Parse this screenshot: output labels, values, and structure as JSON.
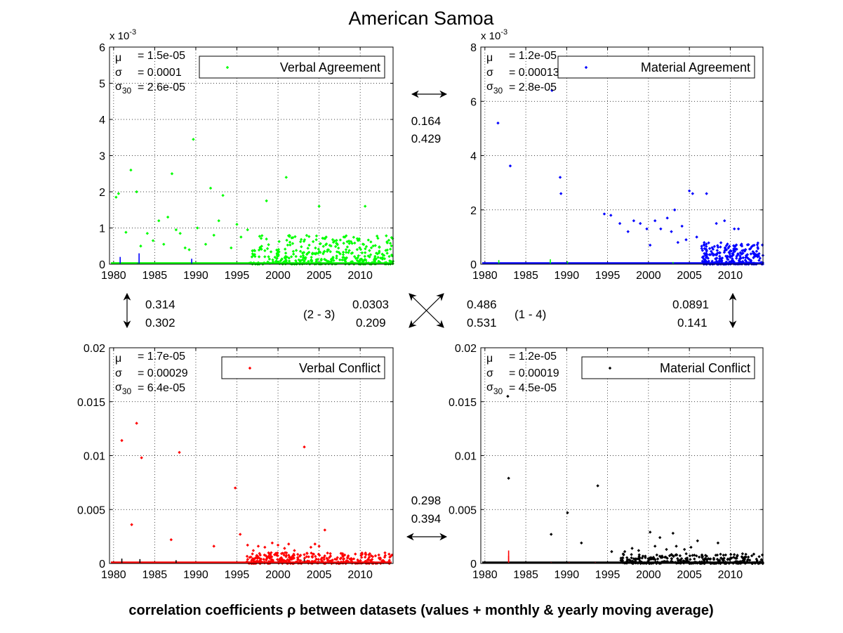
{
  "figure": {
    "title": "American Samoa",
    "footer": "correlation coefficients ρ between datasets (values + monthly & yearly moving average)"
  },
  "colors": {
    "verbal_agreement": "#00ff00",
    "material_agreement": "#0000ff",
    "verbal_conflict": "#ff0000",
    "material_conflict": "#000000",
    "grid": "#000000",
    "text": "#000000"
  },
  "correlations": {
    "pair_1_2": [
      "0.164",
      "0.429"
    ],
    "pair_1_3": [
      "0.314",
      "0.302"
    ],
    "pair_2_3_label": "(2 - 3)",
    "pair_2_3": [
      "0.0303",
      "0.209"
    ],
    "pair_1_4_label": "(1 - 4)",
    "pair_1_4": [
      "0.486",
      "0.531"
    ],
    "pair_2_4": [
      "0.0891",
      "0.141"
    ],
    "pair_3_4": [
      "0.298",
      "0.394"
    ]
  },
  "chart_data": [
    {
      "type": "scatter",
      "title": "",
      "legend": "Verbal Agreement",
      "legend_position": "top-right",
      "color": "#00ff00",
      "exponent_label": "x 10",
      "exponent_power": "-3",
      "xlim": [
        1979.5,
        2014
      ],
      "ylim": [
        0,
        0.006
      ],
      "grid": true,
      "xticks": [
        "1980",
        "1985",
        "1990",
        "1995",
        "2000",
        "2005",
        "2010"
      ],
      "yticks": [
        "0",
        "1",
        "2",
        "3",
        "4",
        "5",
        "6"
      ],
      "stats": {
        "mu": "= 1.5e-05",
        "sigma": "= 0.0001",
        "sigma30": "= 2.6e-05"
      },
      "points": [
        [
          1980.3,
          0.00185
        ],
        [
          1980.6,
          0.00195
        ],
        [
          1981.5,
          0.00088
        ],
        [
          1982.1,
          0.0026
        ],
        [
          1982.8,
          0.002
        ],
        [
          1983.3,
          0.0005
        ],
        [
          1984.1,
          0.00085
        ],
        [
          1984.8,
          0.00065
        ],
        [
          1985.5,
          0.0012
        ],
        [
          1986.1,
          0.00055
        ],
        [
          1986.6,
          0.0013
        ],
        [
          1987.1,
          0.0025
        ],
        [
          1987.6,
          0.00095
        ],
        [
          1988.1,
          0.00085
        ],
        [
          1988.7,
          0.00045
        ],
        [
          1989.2,
          0.0004
        ],
        [
          1989.7,
          0.00345
        ],
        [
          1990.2,
          0.001
        ],
        [
          1991.2,
          0.00055
        ],
        [
          1991.8,
          0.0021
        ],
        [
          1992.2,
          0.0008
        ],
        [
          1992.8,
          0.0012
        ],
        [
          1993.3,
          0.0019
        ],
        [
          1994.3,
          0.00045
        ],
        [
          1995.0,
          0.0011
        ],
        [
          1995.5,
          0.00075
        ],
        [
          1996.3,
          0.00095
        ],
        [
          1998.6,
          0.00175
        ],
        [
          2001.0,
          0.0024
        ],
        [
          2005.0,
          0.0016
        ],
        [
          2010.6,
          0.0016
        ]
      ],
      "dense_cluster": {
        "from": 1996.5,
        "to": 2014,
        "max": 0.0008,
        "count": 380,
        "seed": 11
      },
      "secondary": [
        [
          1980.8,
          0.0002,
          "#0000ff"
        ],
        [
          1983.1,
          0.0003,
          "#0000ff"
        ],
        [
          1989.5,
          0.00015,
          "#0000ff"
        ],
        [
          1982.9,
          3e-05,
          "#0000ff"
        ]
      ]
    },
    {
      "type": "scatter",
      "title": "",
      "legend": "Material Agreement",
      "legend_position": "top-right",
      "color": "#0000ff",
      "exponent_label": "x 10",
      "exponent_power": "-3",
      "xlim": [
        1979.5,
        2014
      ],
      "ylim": [
        0,
        0.008
      ],
      "grid": true,
      "xticks": [
        "1980",
        "1985",
        "1990",
        "1995",
        "2000",
        "2005",
        "2010"
      ],
      "yticks": [
        "0",
        "2",
        "4",
        "6",
        "8"
      ],
      "stats": {
        "mu": "= 1.2e-05",
        "sigma": "= 0.00013",
        "sigma30": "= 2.8e-05"
      },
      "points": [
        [
          1981.6,
          0.0052
        ],
        [
          1983.1,
          0.00362
        ],
        [
          1988.2,
          0.0064
        ],
        [
          1989.2,
          0.0032
        ],
        [
          1989.3,
          0.0026
        ],
        [
          1994.6,
          0.00185
        ],
        [
          1995.4,
          0.0018
        ],
        [
          1996.5,
          0.0015
        ],
        [
          1997.5,
          0.0012
        ],
        [
          1998.2,
          0.0016
        ],
        [
          1999.0,
          0.0015
        ],
        [
          1999.8,
          0.0013
        ],
        [
          2000.2,
          0.0007
        ],
        [
          2000.8,
          0.0016
        ],
        [
          2001.5,
          0.0013
        ],
        [
          2002.3,
          0.0017
        ],
        [
          2002.8,
          0.0012
        ],
        [
          2003.2,
          0.002
        ],
        [
          2003.6,
          0.0008
        ],
        [
          2004.1,
          0.0014
        ],
        [
          2004.6,
          0.0009
        ],
        [
          2005.0,
          0.0027
        ],
        [
          2005.4,
          0.0026
        ],
        [
          2005.9,
          0.001
        ],
        [
          2007.1,
          0.0026
        ],
        [
          2008.3,
          0.0015
        ],
        [
          2009.3,
          0.0016
        ],
        [
          2010.5,
          0.0013
        ],
        [
          2011.0,
          0.0013
        ]
      ],
      "dense_cluster": {
        "from": 2006.5,
        "to": 2014,
        "max": 0.0008,
        "count": 260,
        "seed": 23
      },
      "secondary": [
        [
          1981.7,
          0.00015,
          "#00ff00"
        ],
        [
          1988.0,
          0.00018,
          "#00ff00"
        ],
        [
          1990.1,
          0.0001,
          "#00ff00"
        ],
        [
          2003.0,
          8e-05,
          "#00ff00"
        ]
      ]
    },
    {
      "type": "scatter",
      "title": "",
      "legend": "Verbal Conflict",
      "legend_position": "top-right",
      "color": "#ff0000",
      "exponent_label": "",
      "exponent_power": "",
      "xlim": [
        1979.5,
        2014
      ],
      "ylim": [
        0,
        0.02
      ],
      "grid": true,
      "xticks": [
        "1980",
        "1985",
        "1990",
        "1995",
        "2000",
        "2005",
        "2010"
      ],
      "yticks": [
        "0",
        "0.005",
        "0.01",
        "0.015",
        "0.02"
      ],
      "stats": {
        "mu": "= 1.7e-05",
        "sigma": "= 0.00029",
        "sigma30": "= 6.4e-05"
      },
      "points": [
        [
          1981.0,
          0.0114
        ],
        [
          1982.2,
          0.0036
        ],
        [
          1982.8,
          0.013
        ],
        [
          1983.4,
          0.0098
        ],
        [
          1987.0,
          0.0022
        ],
        [
          1988.0,
          0.0103
        ],
        [
          1992.2,
          0.0016
        ],
        [
          1994.8,
          0.007
        ],
        [
          1995.4,
          0.0027
        ],
        [
          1996.3,
          0.0017
        ],
        [
          1997.0,
          0.0012
        ],
        [
          1997.6,
          0.0016
        ],
        [
          1998.4,
          0.0015
        ],
        [
          1999.3,
          0.0019
        ],
        [
          2000.0,
          0.0017
        ],
        [
          2000.8,
          0.0014
        ],
        [
          2001.3,
          0.0018
        ],
        [
          2002.0,
          0.0012
        ],
        [
          2003.2,
          0.0108
        ],
        [
          2004.0,
          0.0015
        ],
        [
          2004.5,
          0.0018
        ],
        [
          2005.0,
          0.0016
        ],
        [
          2005.7,
          0.0031
        ]
      ],
      "dense_cluster": {
        "from": 1996.0,
        "to": 2014,
        "max": 0.001,
        "count": 320,
        "seed": 37
      },
      "secondary": [
        [
          1981.0,
          0.00045,
          "#000000"
        ],
        [
          1983.2,
          0.0004,
          "#000000"
        ],
        [
          1987.6,
          0.0003,
          "#000000"
        ],
        [
          2003.2,
          0.0005,
          "#000000"
        ]
      ]
    },
    {
      "type": "scatter",
      "title": "",
      "legend": "Material Conflict",
      "legend_position": "top-right",
      "color": "#000000",
      "exponent_label": "",
      "exponent_power": "",
      "xlim": [
        1979.5,
        2014
      ],
      "ylim": [
        0,
        0.02
      ],
      "grid": true,
      "xticks": [
        "1980",
        "1985",
        "1990",
        "1995",
        "2000",
        "2005",
        "2010"
      ],
      "yticks": [
        "0",
        "0.005",
        "0.01",
        "0.015",
        "0.02"
      ],
      "stats": {
        "mu": "= 1.2e-05",
        "sigma": "= 0.00019",
        "sigma30": "= 4.5e-05"
      },
      "points": [
        [
          1982.8,
          0.0155
        ],
        [
          1982.9,
          0.0079
        ],
        [
          1988.1,
          0.0027
        ],
        [
          1990.1,
          0.0047
        ],
        [
          1991.8,
          0.0019
        ],
        [
          1993.8,
          0.0072
        ],
        [
          1995.5,
          0.0011
        ],
        [
          1997.1,
          0.0011
        ],
        [
          1998.0,
          0.0014
        ],
        [
          1998.8,
          0.0012
        ],
        [
          2000.2,
          0.0029
        ],
        [
          2000.8,
          0.0016
        ],
        [
          2001.4,
          0.0024
        ],
        [
          2002.2,
          0.0013
        ],
        [
          2003.0,
          0.0028
        ],
        [
          2003.4,
          0.0016
        ],
        [
          2004.4,
          0.0013
        ],
        [
          2005.2,
          0.0015
        ],
        [
          2006.0,
          0.0021
        ],
        [
          2008.5,
          0.0019
        ],
        [
          2011.5,
          0.0009
        ]
      ],
      "dense_cluster": {
        "from": 1996.5,
        "to": 2014,
        "max": 0.0009,
        "count": 300,
        "seed": 53
      },
      "secondary": [
        [
          1982.9,
          0.0012,
          "#ff0000"
        ],
        [
          1982.9,
          0.0007,
          "#ff0000"
        ],
        [
          1988.1,
          0.0001,
          "#ff0000"
        ],
        [
          1990.3,
          0.0001,
          "#ff0000"
        ],
        [
          1993.5,
          0.0001,
          "#ff0000"
        ]
      ]
    }
  ]
}
